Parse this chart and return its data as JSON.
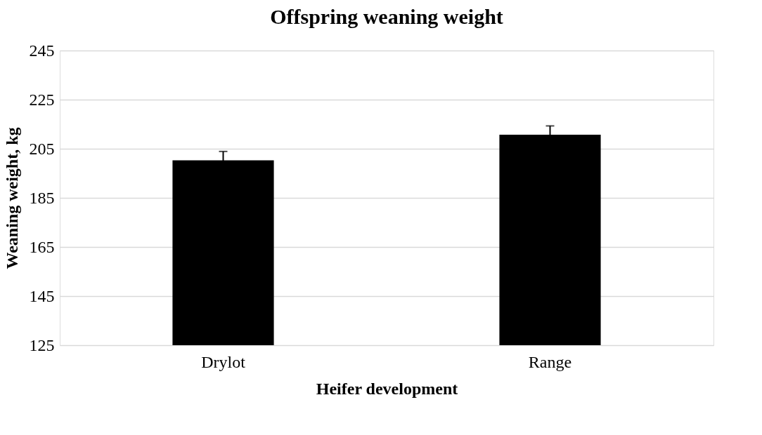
{
  "chart_data": {
    "type": "bar",
    "title": "Offspring weaning weight",
    "xlabel": "Heifer development",
    "ylabel": "Weaning weight, kg",
    "categories": [
      "Drylot",
      "Range"
    ],
    "values": [
      200.3,
      210.7
    ],
    "errors": [
      3.6,
      3.6
    ],
    "color": "#000000",
    "ylim": [
      125,
      245
    ],
    "yticks": [
      125,
      145,
      165,
      185,
      205,
      225,
      245
    ],
    "grid": "y"
  }
}
